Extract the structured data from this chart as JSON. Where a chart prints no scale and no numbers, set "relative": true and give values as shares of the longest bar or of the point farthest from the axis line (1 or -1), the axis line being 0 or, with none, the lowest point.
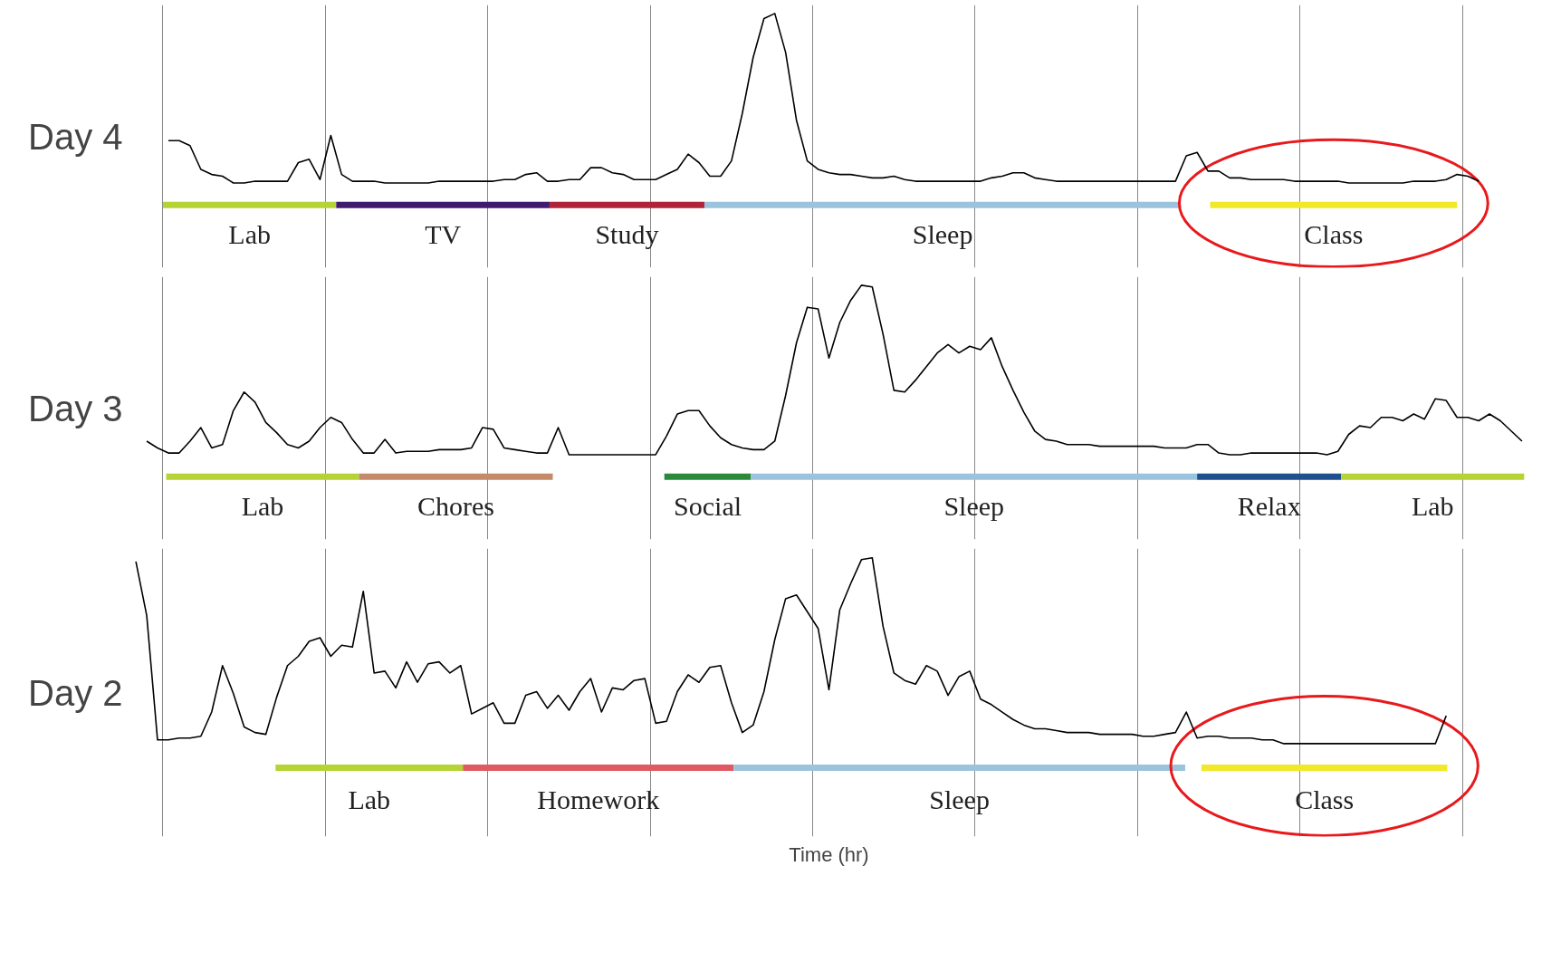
{
  "chart_data": [
    {
      "type": "line",
      "ylabel": "Day 4",
      "relative": true,
      "grid": "x",
      "tick_labels": false,
      "line_style": "solid",
      "categories": [
        null,
        null,
        null,
        null,
        null,
        null,
        null,
        null,
        null,
        null,
        null,
        null,
        null,
        null,
        null,
        null,
        null,
        null,
        null,
        null,
        null,
        null,
        null,
        null,
        null,
        null,
        null,
        null,
        null,
        null,
        null,
        null,
        null,
        null,
        null,
        null,
        null,
        null,
        null,
        null,
        null,
        null,
        null,
        null,
        null,
        null,
        null,
        null,
        null,
        null,
        null,
        null,
        null,
        null,
        null,
        null,
        null,
        null,
        null,
        null,
        null,
        null,
        null,
        null,
        null,
        null,
        null,
        null,
        null,
        null,
        null,
        null,
        null,
        null,
        null,
        null,
        null,
        null,
        null,
        null,
        null,
        null,
        null,
        null,
        null,
        null,
        null,
        null,
        null,
        null,
        null,
        null,
        null,
        null,
        null,
        null,
        null,
        null,
        null,
        null,
        null,
        null,
        null,
        null,
        null,
        null,
        null,
        null,
        null,
        null,
        null,
        null,
        null,
        null,
        null,
        null,
        null,
        null,
        null,
        null,
        null,
        null,
        null,
        null,
        null,
        null,
        null,
        null,
        null
      ],
      "series": [
        {
          "color": "#000000",
          "values": [
            null,
            null,
            null,
            0.25,
            0.25,
            0.22,
            0.08,
            0.05,
            0.04,
            0.0,
            0.0,
            0.01,
            0.01,
            0.01,
            0.01,
            0.12,
            0.14,
            0.02,
            0.28,
            0.05,
            0.01,
            0.01,
            0.01,
            0.0,
            0.0,
            0.0,
            0.0,
            0.0,
            0.01,
            0.01,
            0.01,
            0.01,
            0.01,
            0.01,
            0.02,
            0.02,
            0.05,
            0.06,
            0.01,
            0.01,
            0.02,
            0.02,
            0.09,
            0.09,
            0.06,
            0.05,
            0.02,
            0.02,
            0.02,
            0.05,
            0.08,
            0.17,
            0.12,
            0.04,
            0.04,
            0.13,
            0.41,
            0.74,
            0.97,
            1,
            0.77,
            0.37,
            0.13,
            0.08,
            0.06,
            0.05,
            0.05,
            0.04,
            0.03,
            0.03,
            0.04,
            0.02,
            0.01,
            0.01,
            0.01,
            0.01,
            0.01,
            0.01,
            0.01,
            0.03,
            0.04,
            0.06,
            0.06,
            0.03,
            0.02,
            0.01,
            0.01,
            0.01,
            0.01,
            0.01,
            0.01,
            0.01,
            0.01,
            0.01,
            0.01,
            0.01,
            0.01,
            0.16,
            0.18,
            0.07,
            0.07,
            0.03,
            0.03,
            0.02,
            0.02,
            0.02,
            0.02,
            0.01,
            0.01,
            0.01,
            0.01,
            0.01,
            0.0,
            0.0,
            0.0,
            0.0,
            0.0,
            0.0,
            0.01,
            0.01,
            0.01,
            0.02,
            0.05,
            0.04,
            0.01,
            null,
            null,
            null,
            null
          ]
        }
      ],
      "annotations": [
        "Lab",
        "TV",
        "Study",
        "Sleep",
        "Class"
      ]
    },
    {
      "type": "line",
      "ylabel": "Day 3",
      "relative": true,
      "grid": "x",
      "tick_labels": false,
      "line_style": "solid",
      "categories": [
        null,
        null,
        null,
        null,
        null,
        null,
        null,
        null,
        null,
        null,
        null,
        null,
        null,
        null,
        null,
        null,
        null,
        null,
        null,
        null,
        null,
        null,
        null,
        null,
        null,
        null,
        null,
        null,
        null,
        null,
        null,
        null,
        null,
        null,
        null,
        null,
        null,
        null,
        null,
        null,
        null,
        null,
        null,
        null,
        null,
        null,
        null,
        null,
        null,
        null,
        null,
        null,
        null,
        null,
        null,
        null,
        null,
        null,
        null,
        null,
        null,
        null,
        null,
        null,
        null,
        null,
        null,
        null,
        null,
        null,
        null,
        null,
        null,
        null,
        null,
        null,
        null,
        null,
        null,
        null,
        null,
        null,
        null,
        null,
        null,
        null,
        null,
        null,
        null,
        null,
        null,
        null,
        null,
        null,
        null,
        null,
        null,
        null,
        null,
        null,
        null,
        null,
        null,
        null,
        null,
        null,
        null,
        null,
        null,
        null,
        null,
        null,
        null,
        null,
        null,
        null,
        null,
        null,
        null,
        null,
        null,
        null,
        null,
        null,
        null,
        null,
        null,
        null,
        null
      ],
      "series": [
        {
          "color": "#000000",
          "values": [
            null,
            0.08,
            0.04,
            0.01,
            0.01,
            0.08,
            0.16,
            0.04,
            0.06,
            0.26,
            0.37,
            0.31,
            0.19,
            0.13,
            0.06,
            0.04,
            0.08,
            0.16,
            0.22,
            0.19,
            0.09,
            0.01,
            0.01,
            0.09,
            0.01,
            0.02,
            0.02,
            0.02,
            0.03,
            0.03,
            0.03,
            0.04,
            0.16,
            0.15,
            0.04,
            0.03,
            0.02,
            0.01,
            0.01,
            0.16,
            0.0,
            0.0,
            0.0,
            0.0,
            0.0,
            0.0,
            0.0,
            0.0,
            0.0,
            0.11,
            0.24,
            0.26,
            0.26,
            0.17,
            0.1,
            0.06,
            0.04,
            0.03,
            0.03,
            0.08,
            0.35,
            0.66,
            0.87,
            0.86,
            0.57,
            0.78,
            0.91,
            1,
            0.99,
            0.71,
            0.38,
            0.37,
            0.44,
            0.52,
            0.6,
            0.65,
            0.6,
            0.64,
            0.62,
            0.69,
            0.52,
            0.38,
            0.25,
            0.14,
            0.09,
            0.08,
            0.06,
            0.06,
            0.06,
            0.05,
            0.05,
            0.05,
            0.05,
            0.05,
            0.05,
            0.04,
            0.04,
            0.04,
            0.06,
            0.06,
            0.01,
            0.0,
            0.0,
            0.01,
            0.01,
            0.01,
            0.01,
            0.01,
            0.01,
            0.01,
            0.0,
            0.02,
            0.12,
            0.17,
            0.16,
            0.22,
            0.22,
            0.2,
            0.24,
            0.21,
            0.33,
            0.32,
            0.22,
            0.22,
            0.2,
            0.24,
            0.2,
            0.14,
            0.08
          ]
        }
      ],
      "annotations": [
        "Lab",
        "Chores",
        "Social",
        "Sleep",
        "Relax",
        "Lab"
      ]
    },
    {
      "type": "line",
      "ylabel": "Day 2",
      "xlabel": "Time (hr)",
      "relative": true,
      "grid": "x",
      "tick_labels": false,
      "line_style": "solid",
      "categories": [
        null,
        null,
        null,
        null,
        null,
        null,
        null,
        null,
        null,
        null,
        null,
        null,
        null,
        null,
        null,
        null,
        null,
        null,
        null,
        null,
        null,
        null,
        null,
        null,
        null,
        null,
        null,
        null,
        null,
        null,
        null,
        null,
        null,
        null,
        null,
        null,
        null,
        null,
        null,
        null,
        null,
        null,
        null,
        null,
        null,
        null,
        null,
        null,
        null,
        null,
        null,
        null,
        null,
        null,
        null,
        null,
        null,
        null,
        null,
        null,
        null,
        null,
        null,
        null,
        null,
        null,
        null,
        null,
        null,
        null,
        null,
        null,
        null,
        null,
        null,
        null,
        null,
        null,
        null,
        null,
        null,
        null,
        null,
        null,
        null,
        null,
        null,
        null,
        null,
        null,
        null,
        null,
        null,
        null,
        null,
        null,
        null,
        null,
        null,
        null,
        null,
        null,
        null,
        null,
        null,
        null,
        null,
        null,
        null,
        null,
        null,
        null,
        null,
        null,
        null,
        null,
        null,
        null,
        null,
        null,
        null,
        null,
        null,
        null,
        null,
        null,
        null,
        null,
        null
      ],
      "series": [
        {
          "color": "#000000",
          "values": [
            0.98,
            0.69,
            0.02,
            0.02,
            0.03,
            0.03,
            0.04,
            0.17,
            0.42,
            0.27,
            0.09,
            0.06,
            0.05,
            0.25,
            0.42,
            0.47,
            0.55,
            0.57,
            0.47,
            0.53,
            0.52,
            0.82,
            0.38,
            0.39,
            0.3,
            0.44,
            0.33,
            0.43,
            0.44,
            0.38,
            0.42,
            0.16,
            0.19,
            0.22,
            0.11,
            0.11,
            0.26,
            0.28,
            0.19,
            0.26,
            0.18,
            0.28,
            0.35,
            0.17,
            0.3,
            0.29,
            0.34,
            0.35,
            0.11,
            0.12,
            0.28,
            0.37,
            0.33,
            0.41,
            0.42,
            0.22,
            0.06,
            0.1,
            0.28,
            0.56,
            0.78,
            0.8,
            0.71,
            0.62,
            0.29,
            0.72,
            0.86,
            0.99,
            1,
            0.63,
            0.38,
            0.34,
            0.32,
            0.42,
            0.39,
            0.26,
            0.36,
            0.39,
            0.24,
            0.21,
            0.17,
            0.13,
            0.1,
            0.08,
            0.08,
            0.07,
            0.06,
            0.06,
            0.06,
            0.05,
            0.05,
            0.05,
            0.05,
            0.04,
            0.04,
            0.05,
            0.06,
            0.17,
            0.03,
            0.04,
            0.04,
            0.03,
            0.03,
            0.03,
            0.02,
            0.02,
            0,
            0,
            0,
            0,
            0,
            0,
            0,
            0,
            0,
            0,
            0,
            0,
            0,
            0,
            0,
            0.15,
            null,
            null,
            null,
            null,
            null,
            null,
            null
          ]
        }
      ],
      "annotations": [
        "Lab",
        "Homework",
        "Sleep",
        "Class"
      ]
    }
  ]
}
